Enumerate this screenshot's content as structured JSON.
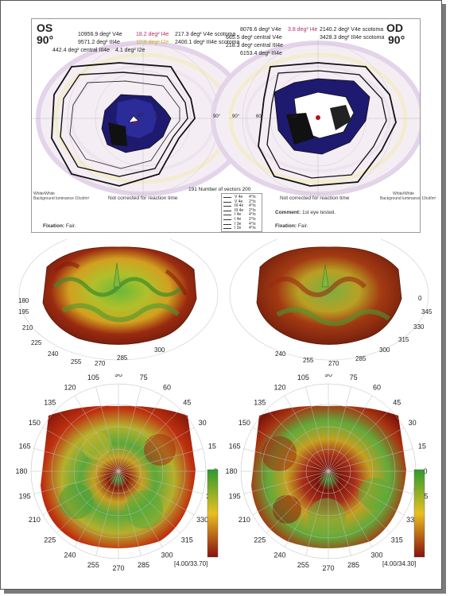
{
  "perimetry": {
    "left_eye": {
      "label": "OS",
      "angle": "90°",
      "stats": [
        {
          "text": "10956.9 deg² V4e",
          "color": "#222"
        },
        {
          "text": "18.2 deg² I4e",
          "color": "#b0306a"
        },
        {
          "text": "217.3 deg² V4e scotoma",
          "color": "#222"
        },
        {
          "text": "9571.2 deg² III4e",
          "color": "#222"
        },
        {
          "text": "10.6 deg² I2e",
          "color": "#d4b020"
        },
        {
          "text": "2400.1 deg² III4e scotoma",
          "color": "#222"
        },
        {
          "text": "442.4 deg² central III4e",
          "color": "#222"
        },
        {
          "text": "4.1 deg² I2e",
          "color": "#222"
        }
      ],
      "tick_10": "10°",
      "tick_30": "30°",
      "tick_90": "90°",
      "note": "Not corrected for reaction time",
      "luminance": [
        "White/White",
        "Background luminance 10cd/m²"
      ],
      "fixation_label": "Fixation:",
      "fixation_value": "Fair."
    },
    "right_eye": {
      "label": "OD",
      "angle": "90°",
      "stats": [
        {
          "text": "8076.6 deg² V4e",
          "color": "#222"
        },
        {
          "text": "3.8 deg² I4e",
          "color": "#b0306a"
        },
        {
          "text": "2140.2 deg² V4e scotoma",
          "color": "#222"
        },
        {
          "text": "665.5 deg² central V4e",
          "color": "#222"
        },
        {
          "text": "3428.3 deg² III4e scotoma",
          "color": "#222"
        },
        {
          "text": "218.3 deg² central III4e",
          "color": "#222"
        },
        {
          "text": "6153.4 deg² III4e",
          "color": "#222"
        }
      ],
      "tick_90": "90°",
      "tick_60": "60°",
      "tick_30": "30°",
      "note": "Not corrected for reaction time",
      "luminance": [
        "White/White",
        "Background luminance 10cd/m²"
      ],
      "comment_label": "Comment:",
      "comment_value": "1st eye tested.",
      "fixation_label": "Fixation:",
      "fixation_value": "Fair."
    },
    "vectors": "191 Number of vectors 200",
    "legend": [
      {
        "stim": "V 4e",
        "speed": "4°/s"
      },
      {
        "stim": "V 4e",
        "speed": "2°/s"
      },
      {
        "stim": "III 4e",
        "speed": "4°/s"
      },
      {
        "stim": "III 4e",
        "speed": "2°/s"
      },
      {
        "stim": "I 4e",
        "speed": "4°/s"
      },
      {
        "stim": "I 4e",
        "speed": "2°/s"
      },
      {
        "stim": "I 3e",
        "speed": "4°/s"
      },
      {
        "stim": "I 2e",
        "speed": "4°/s"
      }
    ]
  },
  "surface_3d": {
    "left_labels": [
      "180",
      "195",
      "210",
      "225",
      "240",
      "255",
      "270",
      "285",
      "300"
    ],
    "right_labels": [
      "0",
      "345",
      "330",
      "315",
      "300",
      "285",
      "270",
      "255",
      "240"
    ]
  },
  "polar_maps": {
    "angle_labels": [
      "0",
      "15",
      "30",
      "45",
      "60",
      "75",
      "90",
      "105",
      "120",
      "135",
      "150",
      "165",
      "180",
      "195",
      "210",
      "225",
      "240",
      "255",
      "270",
      "285",
      "300",
      "315",
      "330",
      "345"
    ],
    "left_range": "[4.00/33.70]",
    "right_range": "[4.00/34.30]",
    "colorbar": {
      "top": "#2e9a2e",
      "mid": "#e8c020",
      "bottom": "#8a1010"
    }
  }
}
